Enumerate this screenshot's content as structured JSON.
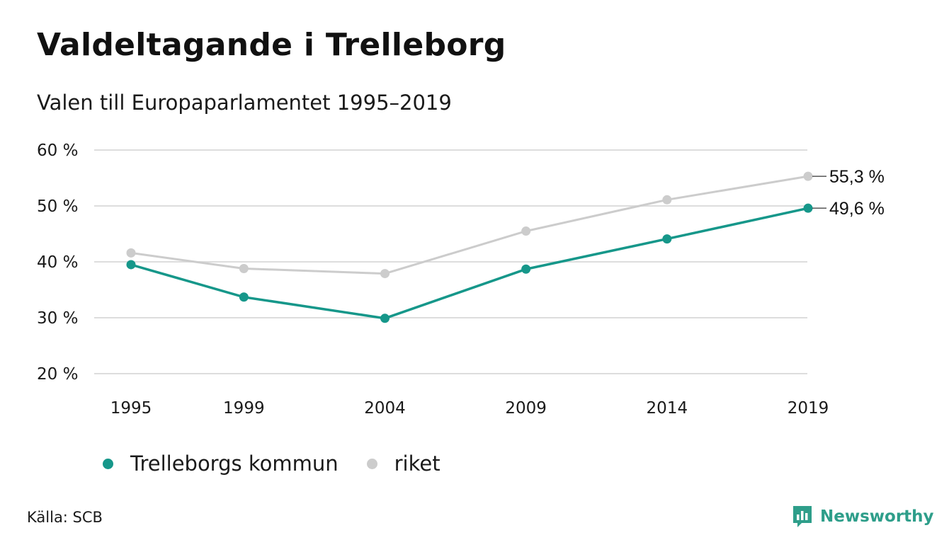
{
  "title": "Valdeltagande i Trelleborg",
  "subtitle": "Valen till Europaparlamentet 1995–2019",
  "source": "Källa: SCB",
  "brand": "Newsworthy",
  "colors": {
    "kommun": "#16978a",
    "riket": "#cccccc",
    "grid": "#dddddd",
    "brand": "#2e9e8a"
  },
  "chart_data": {
    "type": "line",
    "x": [
      1995,
      1999,
      2004,
      2009,
      2014,
      2019
    ],
    "x_tick_labels": [
      "1995",
      "1999",
      "2004",
      "2009",
      "2014",
      "2019"
    ],
    "y_tick_values": [
      20,
      30,
      40,
      50,
      60
    ],
    "y_tick_labels": [
      "20 %",
      "30 %",
      "40 %",
      "50 %",
      "60 %"
    ],
    "ylim": [
      20,
      60
    ],
    "grid": true,
    "legend_placement": "bottom",
    "series": [
      {
        "key": "kommun",
        "name": "Trelleborgs kommun",
        "values": [
          39.5,
          33.7,
          29.9,
          38.7,
          44.1,
          49.6
        ],
        "end_label": "49,6 %"
      },
      {
        "key": "riket",
        "name": "riket",
        "values": [
          41.6,
          38.8,
          37.9,
          45.5,
          51.1,
          55.3
        ],
        "end_label": "55,3 %"
      }
    ]
  }
}
